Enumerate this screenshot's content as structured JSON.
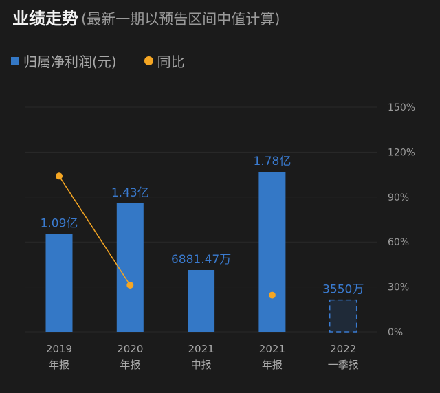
{
  "header": {
    "title": "业绩走势",
    "subtitle": "(最新一期以预告区间中值计算)"
  },
  "legend": [
    {
      "label": "归属净利润(元)",
      "color": "#3478c6",
      "shape": "square"
    },
    {
      "label": "同比",
      "color": "#f5a623",
      "shape": "dot"
    }
  ],
  "chart_data": {
    "type": "bar",
    "categories": [
      [
        "2019",
        "年报"
      ],
      [
        "2020",
        "年报"
      ],
      [
        "2021",
        "中报"
      ],
      [
        "2021",
        "年报"
      ],
      [
        "2022",
        "一季报"
      ]
    ],
    "series": [
      {
        "name": "归属净利润(元)",
        "unit": "亿",
        "values": [
          1.09,
          1.43,
          0.688147,
          1.78,
          0.355
        ],
        "labels": [
          "1.09亿",
          "1.43亿",
          "6881.47万",
          "1.78亿",
          "3550万"
        ],
        "forecast": [
          false,
          false,
          false,
          false,
          true
        ],
        "color": "#3478c6"
      },
      {
        "name": "同比",
        "type": "line",
        "unit": "%",
        "values": [
          104,
          31.2,
          null,
          24.5,
          null
        ],
        "color": "#f5a623"
      }
    ],
    "y_right": {
      "ticks": [
        "150%",
        "120%",
        "90%",
        "60%",
        "30%",
        "0%"
      ],
      "range": [
        0,
        150
      ]
    },
    "grid": true,
    "legend_position": "top-left"
  }
}
